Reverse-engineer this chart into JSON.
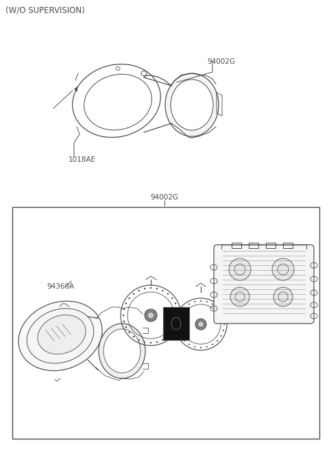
{
  "title": "(W/O SUPERVISION)",
  "bg_color": "#ffffff",
  "line_color": "#4a4a4a",
  "text_color": "#4a4a4a",
  "label_94002G_top": "94002G",
  "label_1018AE": "1018AE",
  "label_94002G_box": "94002G",
  "label_94360A": "94360A",
  "title_fontsize": 8.5,
  "label_fontsize": 7.5
}
